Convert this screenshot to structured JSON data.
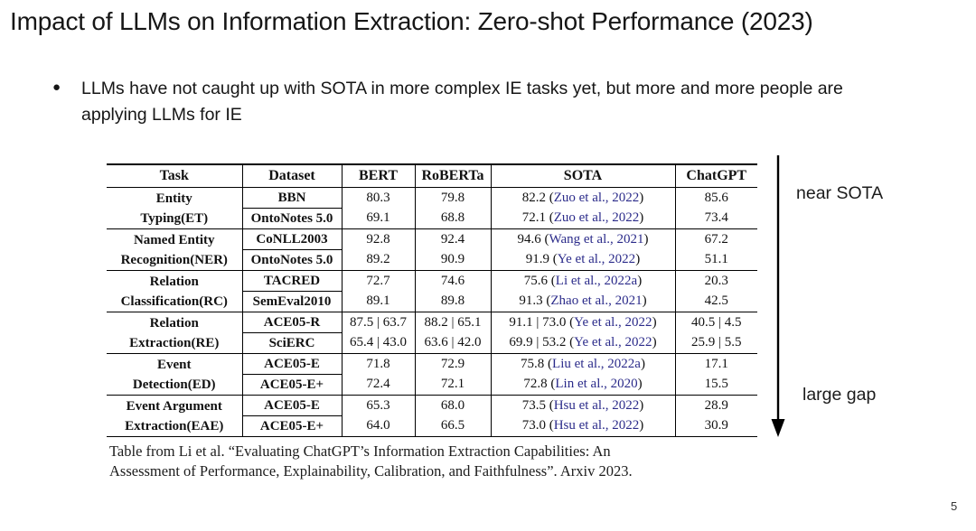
{
  "slide": {
    "title": "Impact of LLMs on Information Extraction: Zero-shot Performance (2023)",
    "bullet": {
      "marker": "●",
      "lines": [
        "LLMs have not caught up with SOTA in more complex IE tasks yet, but more and more people are",
        "applying LLMs for IE"
      ]
    },
    "page_number": "5"
  },
  "annotations": {
    "near_sota": "near SOTA",
    "large_gap": "large gap",
    "arrow_direction": "down"
  },
  "caption": {
    "lines": [
      "Table from Li et al. “Evaluating ChatGPT’s Information Extraction Capabilities: An",
      "Assessment of Performance, Explainability, Calibration, and Faithfulness”. Arxiv 2023."
    ]
  },
  "colors": {
    "background": "#ffffff",
    "text": "#161616",
    "citation": "#2b2b8a",
    "table_border": "#000000"
  },
  "table": {
    "headers": [
      "Task",
      "Dataset",
      "BERT",
      "RoBERTa",
      "SOTA",
      "ChatGPT"
    ],
    "groups": [
      {
        "task": [
          "Entity",
          "Typing(ET)"
        ],
        "rows": [
          {
            "dataset": "BBN",
            "bert": "80.3",
            "roberta": "79.8",
            "sota": "82.2",
            "cite": "Zuo et al., 2022",
            "chatgpt": "85.6"
          },
          {
            "dataset": "OntoNotes 5.0",
            "bert": "69.1",
            "roberta": "68.8",
            "sota": "72.1",
            "cite": "Zuo et al., 2022",
            "chatgpt": "73.4"
          }
        ]
      },
      {
        "task": [
          "Named Entity",
          "Recognition(NER)"
        ],
        "rows": [
          {
            "dataset": "CoNLL2003",
            "bert": "92.8",
            "roberta": "92.4",
            "sota": "94.6",
            "cite": "Wang et al., 2021",
            "chatgpt": "67.2"
          },
          {
            "dataset": "OntoNotes 5.0",
            "bert": "89.2",
            "roberta": "90.9",
            "sota": "91.9",
            "cite": "Ye et al., 2022",
            "chatgpt": "51.1"
          }
        ]
      },
      {
        "task": [
          "Relation",
          "Classification(RC)"
        ],
        "rows": [
          {
            "dataset": "TACRED",
            "bert": "72.7",
            "roberta": "74.6",
            "sota": "75.6",
            "cite": "Li et al., 2022a",
            "chatgpt": "20.3"
          },
          {
            "dataset": "SemEval2010",
            "bert": "89.1",
            "roberta": "89.8",
            "sota": "91.3",
            "cite": "Zhao et al., 2021",
            "chatgpt": "42.5"
          }
        ]
      },
      {
        "task": [
          "Relation",
          "Extraction(RE)"
        ],
        "rows": [
          {
            "dataset": "ACE05-R",
            "bert": "87.5 | 63.7",
            "roberta": "88.2 | 65.1",
            "sota": "91.1 | 73.0",
            "cite": "Ye et al., 2022",
            "chatgpt": "40.5 | 4.5"
          },
          {
            "dataset": "SciERC",
            "bert": "65.4 | 43.0",
            "roberta": "63.6 | 42.0",
            "sota": "69.9 | 53.2",
            "cite": "Ye et al., 2022",
            "chatgpt": "25.9 | 5.5"
          }
        ]
      },
      {
        "task": [
          "Event",
          "Detection(ED)"
        ],
        "rows": [
          {
            "dataset": "ACE05-E",
            "bert": "71.8",
            "roberta": "72.9",
            "sota": "75.8",
            "cite": "Liu et al., 2022a",
            "chatgpt": "17.1"
          },
          {
            "dataset": "ACE05-E+",
            "bert": "72.4",
            "roberta": "72.1",
            "sota": "72.8",
            "cite": "Lin et al., 2020",
            "chatgpt": "15.5"
          }
        ]
      },
      {
        "task": [
          "Event Argument",
          "Extraction(EAE)"
        ],
        "rows": [
          {
            "dataset": "ACE05-E",
            "bert": "65.3",
            "roberta": "68.0",
            "sota": "73.5",
            "cite": "Hsu et al., 2022",
            "chatgpt": "28.9"
          },
          {
            "dataset": "ACE05-E+",
            "bert": "64.0",
            "roberta": "66.5",
            "sota": "73.0",
            "cite": "Hsu et al., 2022",
            "chatgpt": "30.9"
          }
        ]
      }
    ]
  }
}
